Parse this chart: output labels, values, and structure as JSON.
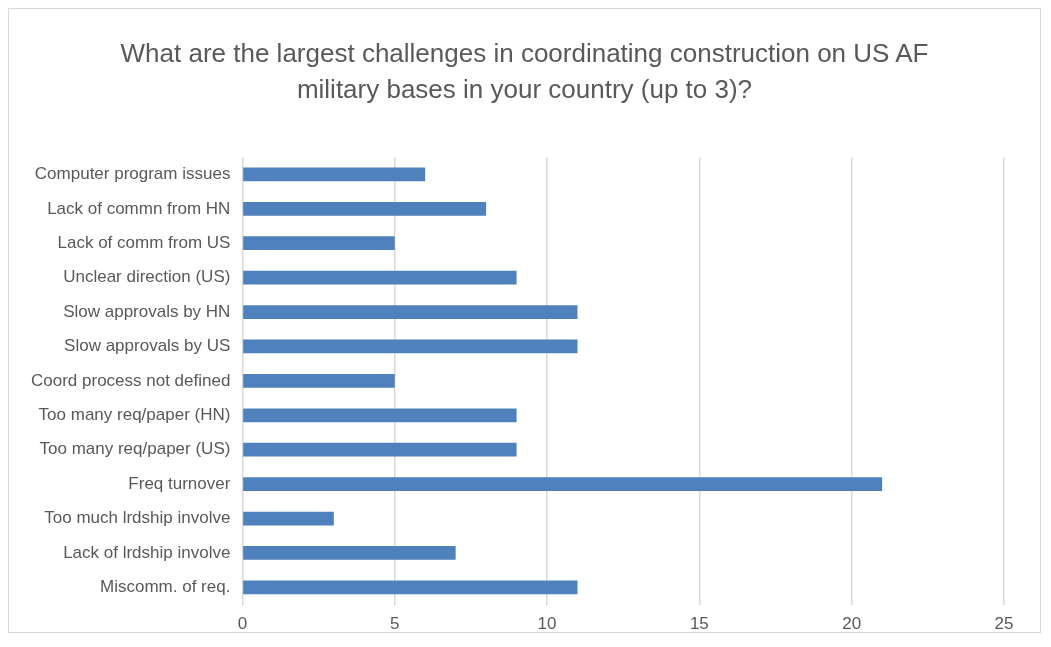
{
  "chart_data": {
    "type": "bar",
    "orientation": "horizontal",
    "title": "What are the largest challenges in coordinating construction on US AF military bases in your country (up to 3)?",
    "categories": [
      "Computer program issues",
      "Lack of commn from HN",
      "Lack of comm from US",
      "Unclear direction (US)",
      "Slow approvals by HN",
      "Slow approvals by US",
      "Coord process not defined",
      "Too many req/paper (HN)",
      "Too many req/paper (US)",
      "Freq turnover",
      "Too much lrdship involve",
      "Lack of lrdship involve",
      "Miscomm. of req."
    ],
    "values": [
      6,
      8,
      5,
      9,
      11,
      11,
      5,
      9,
      9,
      21,
      3,
      7,
      11
    ],
    "color": "#4f81bd",
    "xlim": [
      0,
      25
    ],
    "xticks": [
      0,
      5,
      10,
      15,
      20,
      25
    ],
    "grid": "x",
    "legend": false
  }
}
